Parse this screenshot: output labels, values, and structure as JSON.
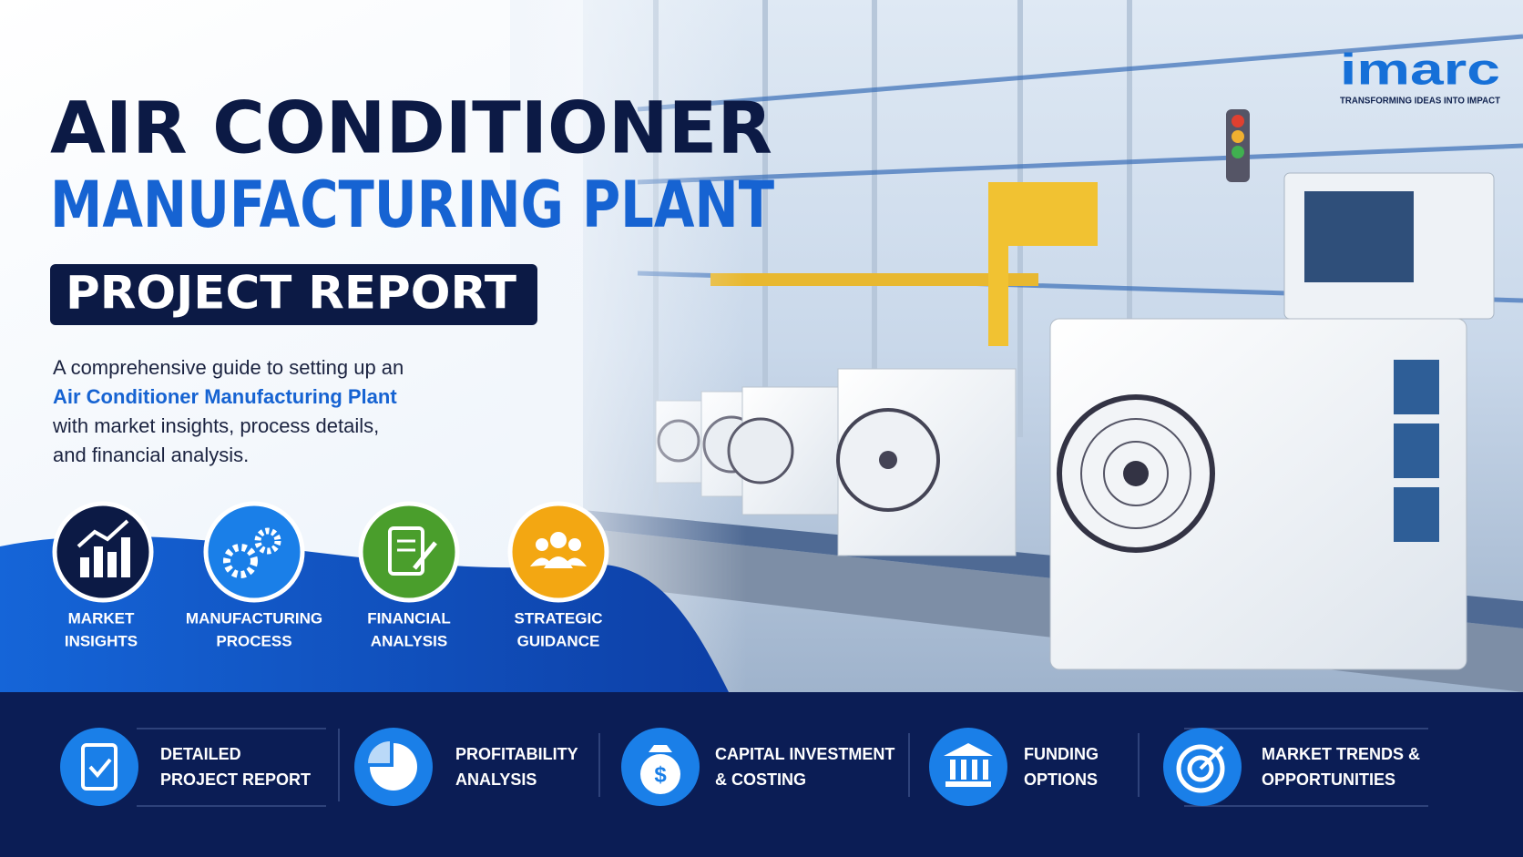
{
  "logo": {
    "name": "imarc",
    "tagline": "TRANSFORMING IDEAS INTO IMPACT"
  },
  "header": {
    "title_line1": "AIR CONDITIONER",
    "title_line2": "MANUFACTURING PLANT",
    "badge": "PROJECT REPORT"
  },
  "description": {
    "lines": [
      "A comprehensive guide to setting up an",
      "Air Conditioner Manufacturing Plant",
      "with market insights, process details,",
      "and financial analysis."
    ]
  },
  "features": [
    {
      "lines": [
        "MARKET",
        "INSIGHTS"
      ]
    },
    {
      "lines": [
        "MANUFACTURING",
        "PROCESS"
      ]
    },
    {
      "lines": [
        "FINANCIAL",
        "ANALYSIS"
      ]
    },
    {
      "lines": [
        "STRATEGIC",
        "GUIDANCE"
      ]
    }
  ],
  "bottom_bar": [
    {
      "lines": [
        "DETAILED",
        "PROJECT REPORT"
      ]
    },
    {
      "lines": [
        "PROFITABILITY",
        "ANALYSIS"
      ]
    },
    {
      "lines": [
        "CAPITAL INVESTMENT",
        "& COSTING"
      ]
    },
    {
      "lines": [
        "FUNDING",
        "OPTIONS"
      ]
    },
    {
      "lines": [
        "MARKET TRENDS &",
        "OPPORTUNITIES"
      ]
    }
  ]
}
